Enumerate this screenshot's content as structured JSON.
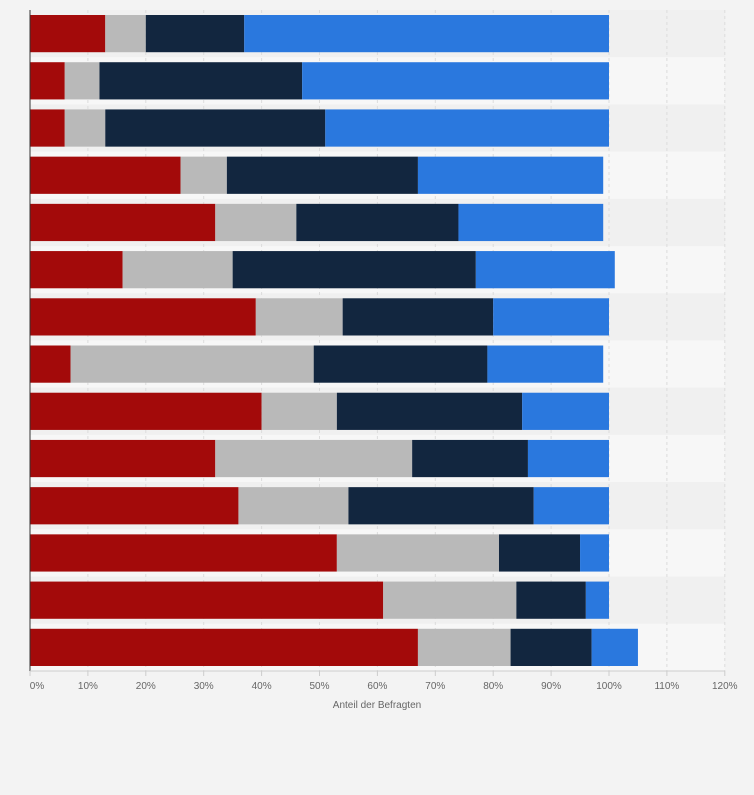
{
  "chart_data": {
    "type": "bar",
    "orientation": "horizontal",
    "stacked": true,
    "xlabel": "Anteil der Befragten",
    "xlim": [
      0,
      120
    ],
    "x_ticks": [
      0,
      10,
      20,
      30,
      40,
      50,
      60,
      70,
      80,
      90,
      100,
      110,
      120
    ],
    "x_tick_labels": [
      "0%",
      "10%",
      "20%",
      "30%",
      "40%",
      "50%",
      "60%",
      "70%",
      "80%",
      "90%",
      "100%",
      "110%",
      "120%"
    ],
    "grid": true,
    "legend": "none",
    "row_count": 14,
    "series": [
      {
        "color": "#a30a0a",
        "values": [
          13,
          6,
          6,
          26,
          32,
          16,
          39,
          7,
          40,
          32,
          36,
          53,
          61,
          67
        ]
      },
      {
        "color": "#b9b9b9",
        "values": [
          7,
          6,
          7,
          8,
          14,
          19,
          15,
          42,
          13,
          34,
          19,
          28,
          23,
          16
        ]
      },
      {
        "color": "#12263f",
        "values": [
          17,
          35,
          38,
          33,
          28,
          42,
          26,
          30,
          32,
          20,
          32,
          14,
          12,
          14
        ]
      },
      {
        "color": "#2a78de",
        "values": [
          63,
          53,
          49,
          32,
          25,
          24,
          20,
          20,
          15,
          14,
          13,
          5,
          4,
          8
        ]
      }
    ]
  }
}
